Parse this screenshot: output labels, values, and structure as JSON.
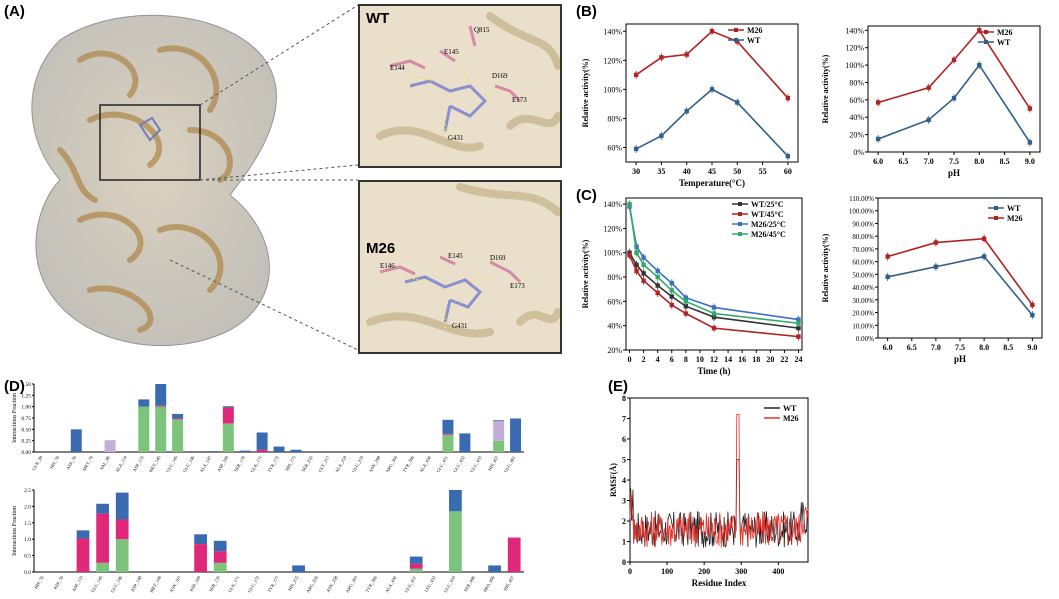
{
  "panels": {
    "A": "(A)",
    "B": "(B)",
    "C": "(C)",
    "D": "(D)",
    "E": "(E)"
  },
  "structure": {
    "wt_label": "WT",
    "m26_label": "M26",
    "wt_residues": [
      "E144",
      "E145",
      "Q815",
      "D169",
      "E173",
      "G431"
    ],
    "m26_residues": [
      "E146",
      "E145",
      "D169",
      "E173",
      "G431"
    ]
  },
  "chart_data": [
    {
      "id": "B-temp",
      "type": "line",
      "xlabel": "Temperature(°C)",
      "ylabel": "Relative activity(%)",
      "x": [
        30,
        35,
        40,
        45,
        50,
        60
      ],
      "xticks": [
        "30",
        "35",
        "40",
        "45",
        "50",
        "55",
        "60"
      ],
      "yticks": [
        "60%",
        "80%",
        "100%",
        "120%",
        "140%"
      ],
      "ylim": [
        50,
        145
      ],
      "series": [
        {
          "name": "M26",
          "color": "#b22222",
          "values": [
            110,
            122,
            124,
            140,
            133,
            94
          ]
        },
        {
          "name": "WT",
          "color": "#2f5f8a",
          "values": [
            59,
            68,
            85,
            100,
            91,
            54
          ]
        }
      ]
    },
    {
      "id": "B-ph",
      "type": "line",
      "xlabel": "pH",
      "ylabel": "Relative activity(%)",
      "x": [
        6.0,
        7.0,
        7.5,
        8.0,
        9.0
      ],
      "xticks": [
        "6.0",
        "6.5",
        "7.0",
        "7.5",
        "8.0",
        "8.5",
        "9.0"
      ],
      "yticks": [
        "0%",
        "20%",
        "40%",
        "60%",
        "80%",
        "100%",
        "120%",
        "140%"
      ],
      "ylim": [
        0,
        145
      ],
      "series": [
        {
          "name": "M26",
          "color": "#b22222",
          "values": [
            57,
            74,
            106,
            140,
            50
          ]
        },
        {
          "name": "WT",
          "color": "#2f5f8a",
          "values": [
            15,
            37,
            62,
            100,
            11
          ]
        }
      ]
    },
    {
      "id": "C-time",
      "type": "line",
      "xlabel": "Time (h)",
      "ylabel": "Relative activity(%)",
      "x": [
        0,
        1,
        2,
        4,
        6,
        8,
        12,
        24
      ],
      "xticks": [
        "0",
        "2",
        "4",
        "6",
        "8",
        "10",
        "12",
        "14",
        "16",
        "18",
        "20",
        "22",
        "24"
      ],
      "yticks": [
        "20%",
        "40%",
        "60%",
        "80%",
        "100%",
        "120%",
        "140%"
      ],
      "ylim": [
        20,
        145
      ],
      "series": [
        {
          "name": "WT/25°C",
          "color": "#333333",
          "values": [
            100,
            90,
            83,
            73,
            64,
            56,
            47,
            38
          ]
        },
        {
          "name": "WT/45°C",
          "color": "#b22222",
          "values": [
            98,
            85,
            77,
            67,
            57,
            50,
            38,
            31
          ]
        },
        {
          "name": "M26/25°C",
          "color": "#3a6fc4",
          "values": [
            138,
            105,
            96,
            85,
            75,
            63,
            55,
            45
          ]
        },
        {
          "name": "M26/45°C",
          "color": "#2eaa6a",
          "values": [
            140,
            100,
            90,
            80,
            69,
            60,
            50,
            42
          ]
        }
      ]
    },
    {
      "id": "C-ph",
      "type": "line",
      "xlabel": "pH",
      "ylabel": "Relative activity(%)",
      "x": [
        6.0,
        7.0,
        8.0,
        9.0
      ],
      "xticks": [
        "6.0",
        "6.5",
        "7.0",
        "7.5",
        "8.0",
        "8.5",
        "9.0"
      ],
      "yticks": [
        "0.00%",
        "10.00%",
        "20.00%",
        "30.00%",
        "40.00%",
        "50.00%",
        "60.00%",
        "70.00%",
        "80.00%",
        "90.00%",
        "100.00%",
        "110.00%"
      ],
      "ylim": [
        0,
        110
      ],
      "series": [
        {
          "name": "WT",
          "color": "#2f5f8a",
          "values": [
            48,
            56,
            64,
            18
          ]
        },
        {
          "name": "M26",
          "color": "#b22222",
          "values": [
            64,
            75,
            78,
            26
          ]
        }
      ]
    },
    {
      "id": "D-top",
      "type": "bar",
      "ylabel": "Interactions Fraction",
      "ylim": [
        0,
        1.5
      ],
      "yticks": [
        "0.00",
        "0.25",
        "0.50",
        "0.75",
        "1.00",
        "1.25",
        "1.50"
      ],
      "categories": [
        "GLN_28",
        "HIS_76",
        "ASP_76",
        "MET_79",
        "VAL_80",
        "ALA_114",
        "ASP_115",
        "MET_145",
        "GLU_145",
        "GLU_146",
        "ALA_147",
        "ASP_169",
        "SER_170",
        "GLN_171",
        "TYR_172",
        "HIS_173",
        "SER_216",
        "GLY_217",
        "ALA_218",
        "GLU_219",
        "ASN_298",
        "ARG_304",
        "TYR_306",
        "ALA_430",
        "GLU_431",
        "GLU_432",
        "GLU_433",
        "HIS_457",
        "GLU_461"
      ],
      "series": [
        {
          "name": "H-bonds",
          "color": "#7cc47c",
          "values": [
            0,
            0,
            0,
            0,
            0,
            0,
            1.0,
            1.0,
            0.72,
            0,
            0,
            0.63,
            0,
            0,
            0,
            0,
            0,
            0,
            0,
            0,
            0,
            0,
            0,
            0,
            0.38,
            0,
            0,
            0.25,
            0
          ]
        },
        {
          "name": "Ionic",
          "color": "#e0287a",
          "values": [
            0,
            0,
            0,
            0,
            0,
            0,
            0,
            0.02,
            0.02,
            0,
            0,
            0.35,
            0,
            0.05,
            0,
            0,
            0,
            0,
            0,
            0,
            0,
            0,
            0,
            0,
            0.02,
            0,
            0,
            0,
            0
          ]
        },
        {
          "name": "Hydrophobic",
          "color": "#c2aed6",
          "values": [
            0,
            0,
            0,
            0,
            0.26,
            0,
            0,
            0,
            0,
            0,
            0,
            0,
            0,
            0,
            0,
            0,
            0,
            0,
            0,
            0,
            0,
            0,
            0,
            0,
            0,
            0,
            0,
            0.43,
            0
          ]
        },
        {
          "name": "Water bridges",
          "color": "#3a6bb0",
          "values": [
            0,
            0,
            0.5,
            0,
            0,
            0,
            0.16,
            0.48,
            0.1,
            0,
            0.02,
            0.03,
            0.03,
            0.38,
            0.12,
            0.05,
            0,
            0,
            0,
            0,
            0,
            0,
            0,
            0,
            0.31,
            0.41,
            0,
            0.02,
            0.74
          ]
        }
      ]
    },
    {
      "id": "D-bottom",
      "type": "bar",
      "ylabel": "Interactions Fraction",
      "ylim": [
        0,
        2.5
      ],
      "yticks": [
        "0.0",
        "0.5",
        "1.0",
        "1.5",
        "2.0",
        "2.5"
      ],
      "categories": [
        "HIS_76",
        "ASP_76",
        "ASP_115",
        "GLU_145",
        "GLU_146",
        "ASP_148",
        "MET_149",
        "ASN_167",
        "ASP_169",
        "SER_170",
        "GLN_171",
        "GLU_172",
        "TYR_177",
        "HIS_215",
        "ARG_255",
        "ASN_258",
        "ARG_303",
        "TYR_306",
        "ALA_430",
        "GLU_431",
        "LEU_432",
        "GLU_433",
        "SER_446",
        "PRO_456",
        "HIS_457"
      ],
      "series": [
        {
          "name": "H-bonds",
          "color": "#7cc47c",
          "values": [
            0,
            0,
            0,
            0.28,
            1.0,
            0,
            0,
            0,
            0,
            0.28,
            0,
            0,
            0,
            0,
            0,
            0,
            0,
            0,
            0,
            0.1,
            0,
            1.85,
            0,
            0,
            0
          ]
        },
        {
          "name": "Ionic",
          "color": "#e0287a",
          "values": [
            0,
            0,
            1.02,
            1.5,
            0.6,
            0,
            0,
            0,
            0.85,
            0.35,
            0,
            0,
            0,
            0,
            0,
            0,
            0,
            0,
            0,
            0.15,
            0,
            0,
            0,
            0,
            1.05
          ]
        },
        {
          "name": "Water bridges",
          "color": "#3a6bb0",
          "values": [
            0,
            0,
            0.25,
            0.3,
            0.82,
            0,
            0,
            0,
            0.3,
            0.32,
            0,
            0,
            0,
            0.2,
            0,
            0,
            0,
            0,
            0,
            0.22,
            0,
            0.65,
            0,
            0.2,
            0
          ]
        }
      ]
    },
    {
      "id": "E-rmsf",
      "type": "line",
      "xlabel": "Residue Index",
      "ylabel": "RMSF(Å)",
      "xticks": [
        "0",
        "100",
        "200",
        "300",
        "400"
      ],
      "yticks": [
        "0",
        "1",
        "2",
        "3",
        "4",
        "5",
        "6",
        "7",
        "8"
      ],
      "xlim": [
        0,
        480
      ],
      "ylim": [
        0,
        8
      ],
      "series": [
        {
          "name": "WT",
          "color": "#222222"
        },
        {
          "name": "M26",
          "color": "#e8302a"
        }
      ]
    }
  ]
}
